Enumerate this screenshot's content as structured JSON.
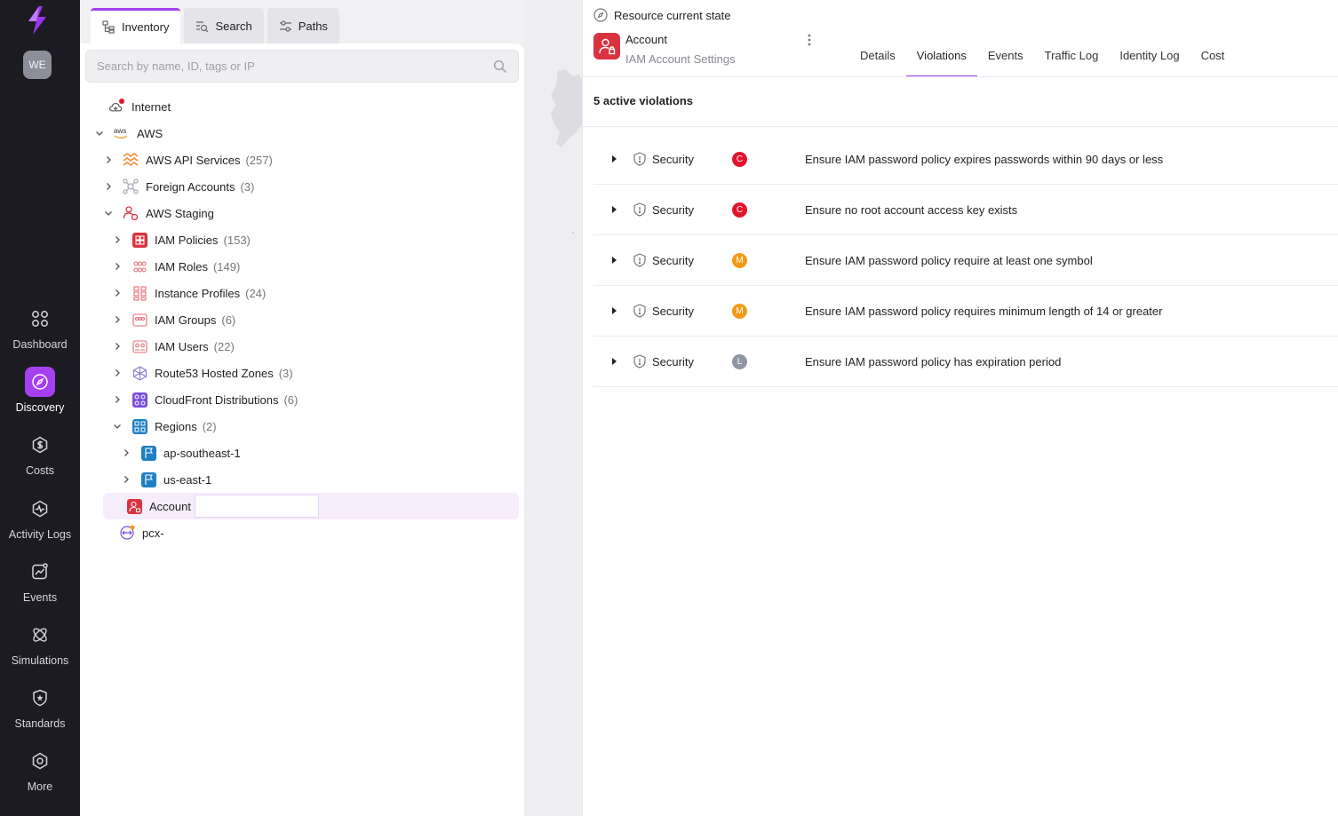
{
  "nav": {
    "avatar": "WE",
    "items": [
      {
        "label": "Dashboard",
        "icon": "grid-icon"
      },
      {
        "label": "Discovery",
        "icon": "compass-icon",
        "active": true
      },
      {
        "label": "Costs",
        "icon": "dollar-icon"
      },
      {
        "label": "Activity Logs",
        "icon": "pulse-icon"
      },
      {
        "label": "Events",
        "icon": "chart-icon"
      },
      {
        "label": "Simulations",
        "icon": "atom-icon"
      },
      {
        "label": "Standards",
        "icon": "badge-icon"
      },
      {
        "label": "More",
        "icon": "gear-icon"
      }
    ]
  },
  "panel": {
    "tabs": [
      {
        "label": "Inventory",
        "active": true
      },
      {
        "label": "Search"
      },
      {
        "label": "Paths"
      }
    ],
    "search_placeholder": "Search by name, ID, tags or IP",
    "tree": {
      "internet": "Internet",
      "aws": "AWS",
      "aws_api": {
        "label": "AWS API Services",
        "count": "(257)"
      },
      "foreign": {
        "label": "Foreign Accounts",
        "count": "(3)"
      },
      "staging": "AWS Staging",
      "iam_policies": {
        "label": "IAM Policies",
        "count": "(153)"
      },
      "iam_roles": {
        "label": "IAM Roles",
        "count": "(149)"
      },
      "instance_profiles": {
        "label": "Instance Profiles",
        "count": "(24)"
      },
      "iam_groups": {
        "label": "IAM Groups",
        "count": "(6)"
      },
      "iam_users": {
        "label": "IAM Users",
        "count": "(22)"
      },
      "route53": {
        "label": "Route53 Hosted Zones",
        "count": "(3)"
      },
      "cloudfront": {
        "label": "CloudFront Distributions",
        "count": "(6)"
      },
      "regions": {
        "label": "Regions",
        "count": "(2)"
      },
      "region1": "ap-southeast-1",
      "region2": "us-east-1",
      "account": "Account",
      "pcx": "pcx-"
    }
  },
  "detail": {
    "state_label": "Resource current state",
    "resource_title": "Account",
    "resource_subtitle": "IAM Account Settings",
    "tabs": [
      {
        "label": "Details"
      },
      {
        "label": "Violations",
        "active": true
      },
      {
        "label": "Events"
      },
      {
        "label": "Traffic Log"
      },
      {
        "label": "Identity Log"
      },
      {
        "label": "Cost"
      }
    ],
    "violations_count": "5 active violations",
    "violations": [
      {
        "category": "Security",
        "severity": "C",
        "severity_color": "#e5132d",
        "title": "Ensure IAM password policy expires passwords within 90 days or less"
      },
      {
        "category": "Security",
        "severity": "C",
        "severity_color": "#e5132d",
        "title": "Ensure no root account access key exists"
      },
      {
        "category": "Security",
        "severity": "M",
        "severity_color": "#f59a16",
        "title": "Ensure IAM password policy require at least one symbol"
      },
      {
        "category": "Security",
        "severity": "M",
        "severity_color": "#f59a16",
        "title": "Ensure IAM password policy requires minimum length of 14 or greater"
      },
      {
        "category": "Security",
        "severity": "L",
        "severity_color": "#8f95a3",
        "title": "Ensure IAM password policy has expiration period"
      }
    ]
  },
  "colors": {
    "accent": "#a53ff0",
    "nav_bg": "#1c1b22",
    "critical": "#e5132d",
    "medium": "#f59a16",
    "low": "#8f95a3"
  }
}
